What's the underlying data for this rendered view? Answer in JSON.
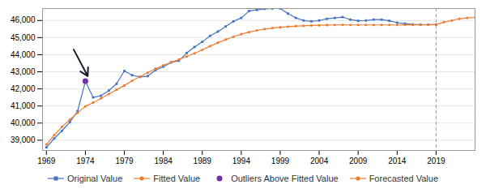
{
  "chart_data": {
    "type": "line",
    "x": [
      1969,
      1970,
      1971,
      1972,
      1973,
      1974,
      1975,
      1976,
      1977,
      1978,
      1979,
      1980,
      1981,
      1982,
      1983,
      1984,
      1985,
      1986,
      1987,
      1988,
      1989,
      1990,
      1991,
      1992,
      1993,
      1994,
      1995,
      1996,
      1997,
      1998,
      1999,
      2000,
      2001,
      2002,
      2003,
      2004,
      2005,
      2006,
      2007,
      2008,
      2009,
      2010,
      2011,
      2012,
      2013,
      2014,
      2015,
      2016,
      2017,
      2018,
      2019,
      2020,
      2021,
      2022,
      2023,
      2024
    ],
    "series": [
      {
        "name": "Original Value",
        "color": "#4472c4",
        "marker": "square",
        "values": [
          38580,
          39100,
          39550,
          40050,
          40700,
          42450,
          41500,
          41600,
          41900,
          42300,
          43050,
          42800,
          42700,
          42750,
          43100,
          43300,
          43550,
          43650,
          44100,
          44450,
          44750,
          45100,
          45350,
          45650,
          45950,
          46150,
          46550,
          46620,
          46680,
          46700,
          46700,
          46400,
          46150,
          46000,
          45950,
          46000,
          46100,
          46150,
          46200,
          46050,
          45980,
          46000,
          46050,
          46050,
          45980,
          45870,
          45820,
          45770,
          45760,
          45760,
          45760,
          null,
          null,
          null,
          null,
          null
        ]
      },
      {
        "name": "Fitted Value",
        "color": "#ed7d31",
        "marker": "circle",
        "values": [
          38750,
          39300,
          39780,
          40200,
          40600,
          40980,
          41200,
          41450,
          41700,
          41950,
          42200,
          42480,
          42720,
          42950,
          43180,
          43380,
          43560,
          43720,
          43900,
          44080,
          44280,
          44500,
          44700,
          44880,
          45050,
          45200,
          45320,
          45420,
          45500,
          45560,
          45600,
          45640,
          45670,
          45690,
          45710,
          45720,
          45730,
          45740,
          45750,
          45740,
          45740,
          45740,
          45740,
          45740,
          45740,
          45740,
          45750,
          45750,
          45750,
          45750,
          45760,
          null,
          null,
          null,
          null,
          null
        ]
      },
      {
        "name": "Outliers Above Fitted Value",
        "color": "#7030a0",
        "marker": "circle",
        "type": "scatter",
        "values": [
          null,
          null,
          null,
          null,
          null,
          42450,
          null,
          null,
          null,
          null,
          null,
          null,
          null,
          null,
          null,
          null,
          null,
          null,
          null,
          null,
          null,
          null,
          null,
          null,
          null,
          null,
          null,
          null,
          null,
          null,
          null,
          null,
          null,
          null,
          null,
          null,
          null,
          null,
          null,
          null,
          null,
          null,
          null,
          null,
          null,
          null,
          null,
          null,
          null,
          null,
          null,
          null,
          null,
          null,
          null,
          null
        ]
      },
      {
        "name": "Forecasted Value",
        "color": "#ed7d31",
        "marker": "circle",
        "values": [
          null,
          null,
          null,
          null,
          null,
          null,
          null,
          null,
          null,
          null,
          null,
          null,
          null,
          null,
          null,
          null,
          null,
          null,
          null,
          null,
          null,
          null,
          null,
          null,
          null,
          null,
          null,
          null,
          null,
          null,
          null,
          null,
          null,
          null,
          null,
          null,
          null,
          null,
          null,
          null,
          null,
          null,
          null,
          null,
          null,
          null,
          null,
          null,
          null,
          null,
          45760,
          45900,
          46000,
          46100,
          46150,
          46180
        ]
      }
    ],
    "xlim": [
      1968.5,
      2024
    ],
    "xticks": [
      1969,
      1974,
      1979,
      1984,
      1989,
      1994,
      1999,
      2004,
      2009,
      2014,
      2019
    ],
    "ylim": [
      38400,
      46700
    ],
    "yticks": [
      {
        "value": 39000,
        "label": "39,000"
      },
      {
        "value": 40000,
        "label": "40,000"
      },
      {
        "value": 41000,
        "label": "41,000"
      },
      {
        "value": 42000,
        "label": "42,000"
      },
      {
        "value": 43000,
        "label": "43,000"
      },
      {
        "value": 44000,
        "label": "44,000"
      },
      {
        "value": 45000,
        "label": "45,000"
      },
      {
        "value": 46000,
        "label": "46,000"
      }
    ],
    "grid": true,
    "legend": "bottom",
    "vlines": [
      {
        "x": 2019,
        "line_style": "dashed"
      }
    ],
    "arrows": [
      {
        "x1": 1972.5,
        "y1": 44300,
        "x2": 1974.3,
        "y2": 42750
      }
    ]
  }
}
